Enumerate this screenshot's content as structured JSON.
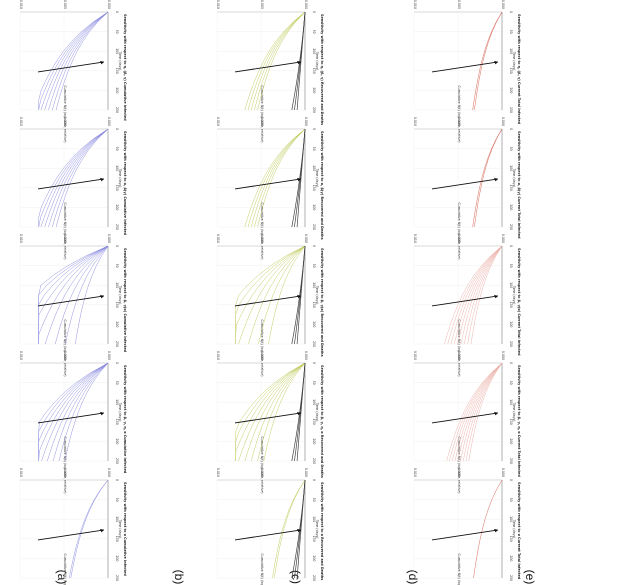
{
  "figure": {
    "row_labels": [
      "(a)",
      "(b)",
      "(c)",
      "(d)",
      "(e)"
    ],
    "column_titles": [
      [
        "Sensitivity with respect to η, (β, γ) Cumulative Infected",
        "Sensitivity with respect to η, (β, γ) Recovered and Deaths",
        "Sensitivity with respect to η, (β, γ) Current Total Infected"
      ],
      [
        "Sensitivity with respect to α, β(γ) Cumulative Infected",
        "Sensitivity with respect to α, β(γ) Recovered and Deaths",
        "Sensitivity with respect to α, β(γ) Current Total Infected"
      ],
      [
        "Sensitivity with respect to β, γ(α) Cumulative Infected",
        "Sensitivity with respect to β, γ(α) Recovered and Deaths",
        "Sensitivity with respect to β, γ(α) Current Total Infected"
      ],
      [
        "Sensitivity with respect to β, γ, η, α Cumulative Infected",
        "Sensitivity with respect to β, γ, η, α Recovered and Deaths",
        "Sensitivity with respect to β, γ, η, α Current Total Infected"
      ],
      [
        "Sensitivity with respect to α Cumulative Infected",
        "Sensitivity with respect to α Recovered and Deaths",
        "Sensitivity with respect to α Current Total Infected"
      ]
    ],
    "xlabel": "Time (days)",
    "ylabel": "Cumulative N(t) (log-scale, relative)",
    "xticks": [
      "0",
      "50",
      "100",
      "150",
      "200",
      "250"
    ],
    "yticks": [
      "0.000",
      "0.005",
      "0.010"
    ]
  },
  "chart_data": {
    "type": "line",
    "colors": {
      "cumulative": "#8080dd",
      "recovered": "#b8c44a",
      "deaths": "#444444",
      "current": "#d05040",
      "current_light": "#eaa8a0"
    },
    "x": [
      0,
      25,
      50,
      75,
      100,
      125,
      150,
      175,
      200,
      225,
      250
    ],
    "panels": [
      {
        "row": 0,
        "col": 0,
        "series": "cumulative",
        "curves": 7,
        "spread": 0.18,
        "growth": 1.0
      },
      {
        "row": 0,
        "col": 1,
        "series": "recovered",
        "curves": 5,
        "spread": 0.12,
        "growth": 0.85,
        "deaths": true
      },
      {
        "row": 0,
        "col": 2,
        "series": "current",
        "curves": 2,
        "spread": 0.03,
        "growth": 0.45
      },
      {
        "row": 1,
        "col": 0,
        "series": "cumulative",
        "curves": 7,
        "spread": 0.18,
        "growth": 1.0
      },
      {
        "row": 1,
        "col": 1,
        "series": "recovered",
        "curves": 5,
        "spread": 0.12,
        "growth": 0.85,
        "deaths": true
      },
      {
        "row": 1,
        "col": 2,
        "series": "current",
        "curves": 2,
        "spread": 0.03,
        "growth": 0.45
      },
      {
        "row": 2,
        "col": 0,
        "series": "cumulative",
        "curves": 9,
        "spread": 0.55,
        "growth": 1.15
      },
      {
        "row": 2,
        "col": 1,
        "series": "recovered",
        "curves": 7,
        "spread": 0.45,
        "growth": 1.05,
        "deaths": true
      },
      {
        "row": 2,
        "col": 2,
        "series": "current_light",
        "curves": 9,
        "spread": 0.3,
        "growth": 0.7
      },
      {
        "row": 3,
        "col": 0,
        "series": "cumulative",
        "curves": 9,
        "spread": 0.35,
        "growth": 1.05
      },
      {
        "row": 3,
        "col": 1,
        "series": "recovered",
        "curves": 8,
        "spread": 0.35,
        "growth": 1.0,
        "deaths": true
      },
      {
        "row": 3,
        "col": 2,
        "series": "current_light",
        "curves": 9,
        "spread": 0.25,
        "growth": 0.7
      },
      {
        "row": 4,
        "col": 0,
        "series": "cumulative",
        "curves": 2,
        "spread": 0.02,
        "growth": 0.6
      },
      {
        "row": 4,
        "col": 1,
        "series": "recovered",
        "curves": 2,
        "spread": 0.03,
        "growth": 0.5,
        "deaths": true
      },
      {
        "row": 4,
        "col": 2,
        "series": "current",
        "curves": 1,
        "spread": 0.0,
        "growth": 0.45
      }
    ]
  }
}
